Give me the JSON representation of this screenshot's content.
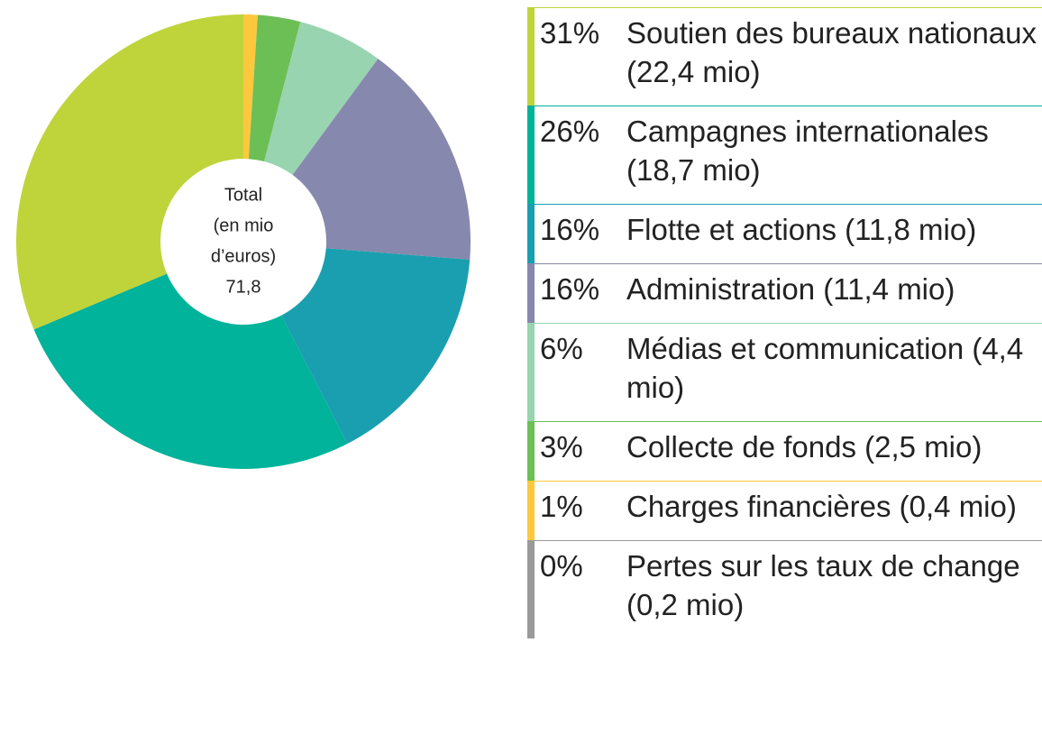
{
  "chart_data": {
    "type": "pie",
    "categories": [
      "Soutien des bureaux nationaux (22,4 mio)",
      "Campagnes internationales (18,7 mio)",
      "Flotte et actions (11,8 mio)",
      "Administration (11,4 mio)",
      "Médias et communication (4,4 mio)",
      "Collecte de fonds (2,5 mio)",
      "Charges financières (0,4 mio)",
      "Pertes sur les taux de change (0,2 mio)"
    ],
    "values": [
      31,
      26,
      16,
      16,
      6,
      3,
      1,
      0
    ],
    "value_labels": [
      "31%",
      "26%",
      "16%",
      "16%",
      "6%",
      "3%",
      "1%",
      "0%"
    ],
    "colors": [
      "#bfd43a",
      "#00b39a",
      "#1a9fb0",
      "#8788ad",
      "#98d4b0",
      "#6cbf55",
      "#fdc83e",
      "#9a9a9a"
    ],
    "center_text": [
      "Total",
      "(en mio",
      "d’euros)",
      "71,8"
    ]
  }
}
